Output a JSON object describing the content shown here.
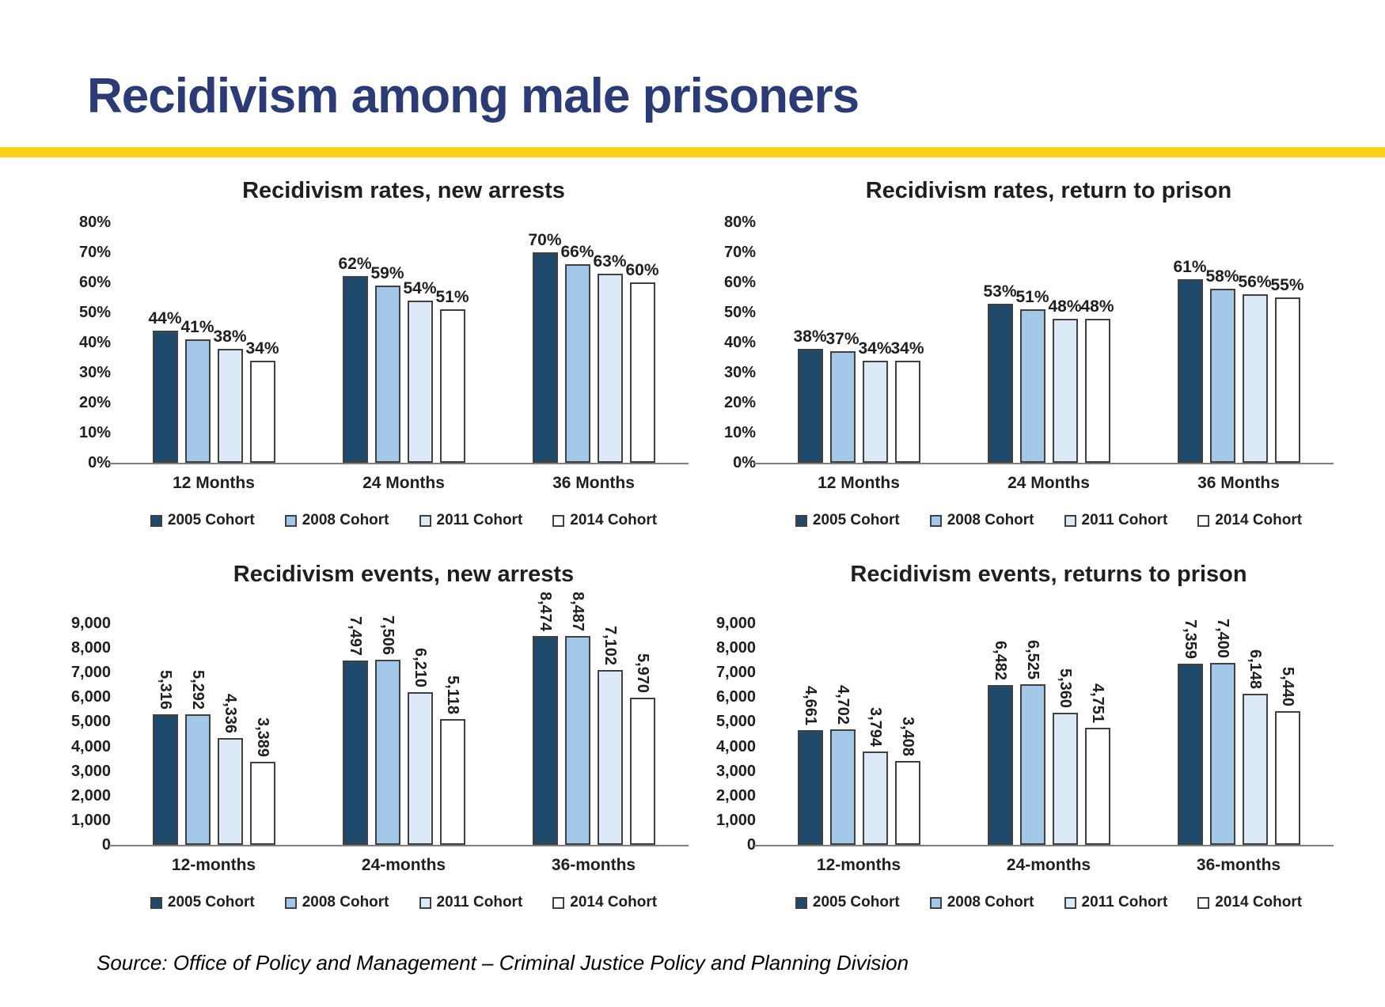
{
  "slide": {
    "title": "Recidivism among male prisoners",
    "source": "Source: Office of Policy and Management – Criminal Justice Policy and Planning Division"
  },
  "colors": {
    "title_text": "#2B3B76",
    "divider_yellow": "#FCD21C",
    "axis_line": "#7F7F7F",
    "chart_text": "#1F1F1F",
    "series_fills": [
      "#1F4A6B",
      "#A3C7E8",
      "#DCE9F6",
      "#FFFFFF"
    ],
    "bar_border": "#404040"
  },
  "chart_data": [
    {
      "type": "bar",
      "title": "Recidivism rates, new arrests",
      "categories": [
        "12 Months",
        "24 Months",
        "36 Months"
      ],
      "series": [
        {
          "name": "2005 Cohort",
          "values": [
            44,
            62,
            70
          ]
        },
        {
          "name": "2008 Cohort",
          "values": [
            41,
            59,
            66
          ]
        },
        {
          "name": "2011 Cohort",
          "values": [
            38,
            54,
            63
          ]
        },
        {
          "name": "2014 Cohort",
          "values": [
            34,
            51,
            60
          ]
        }
      ],
      "ylim": [
        0,
        80
      ],
      "ytick_step": 10,
      "value_format": "percent",
      "data_labels": "horizontal",
      "grid": false,
      "legend_position": "bottom"
    },
    {
      "type": "bar",
      "title": "Recidivism rates, return to prison",
      "categories": [
        "12 Months",
        "24 Months",
        "36 Months"
      ],
      "series": [
        {
          "name": "2005 Cohort",
          "values": [
            38,
            53,
            61
          ]
        },
        {
          "name": "2008 Cohort",
          "values": [
            37,
            51,
            58
          ]
        },
        {
          "name": "2011 Cohort",
          "values": [
            34,
            48,
            56
          ]
        },
        {
          "name": "2014 Cohort",
          "values": [
            34,
            48,
            55
          ]
        }
      ],
      "ylim": [
        0,
        80
      ],
      "ytick_step": 10,
      "value_format": "percent",
      "data_labels": "horizontal",
      "grid": false,
      "legend_position": "bottom"
    },
    {
      "type": "bar",
      "title": "Recidivism events, new arrests",
      "categories": [
        "12-months",
        "24-months",
        "36-months"
      ],
      "series": [
        {
          "name": "2005 Cohort",
          "values": [
            5316,
            7497,
            8474
          ]
        },
        {
          "name": "2008 Cohort",
          "values": [
            5292,
            7506,
            8487
          ]
        },
        {
          "name": "2011 Cohort",
          "values": [
            4336,
            6210,
            7102
          ]
        },
        {
          "name": "2014 Cohort",
          "values": [
            3389,
            5118,
            5970
          ]
        }
      ],
      "ylim": [
        0,
        9000
      ],
      "ytick_step": 1000,
      "value_format": "thousands",
      "data_labels": "rotated",
      "grid": false,
      "legend_position": "bottom"
    },
    {
      "type": "bar",
      "title": "Recidivism events, returns to prison",
      "categories": [
        "12-months",
        "24-months",
        "36-months"
      ],
      "series": [
        {
          "name": "2005 Cohort",
          "values": [
            4661,
            6482,
            7359
          ]
        },
        {
          "name": "2008 Cohort",
          "values": [
            4702,
            6525,
            7400
          ]
        },
        {
          "name": "2011 Cohort",
          "values": [
            3794,
            5360,
            6148
          ]
        },
        {
          "name": "2014 Cohort",
          "values": [
            3408,
            4751,
            5440
          ]
        }
      ],
      "ylim": [
        0,
        9000
      ],
      "ytick_step": 1000,
      "value_format": "thousands",
      "data_labels": "rotated",
      "grid": false,
      "legend_position": "bottom"
    }
  ]
}
